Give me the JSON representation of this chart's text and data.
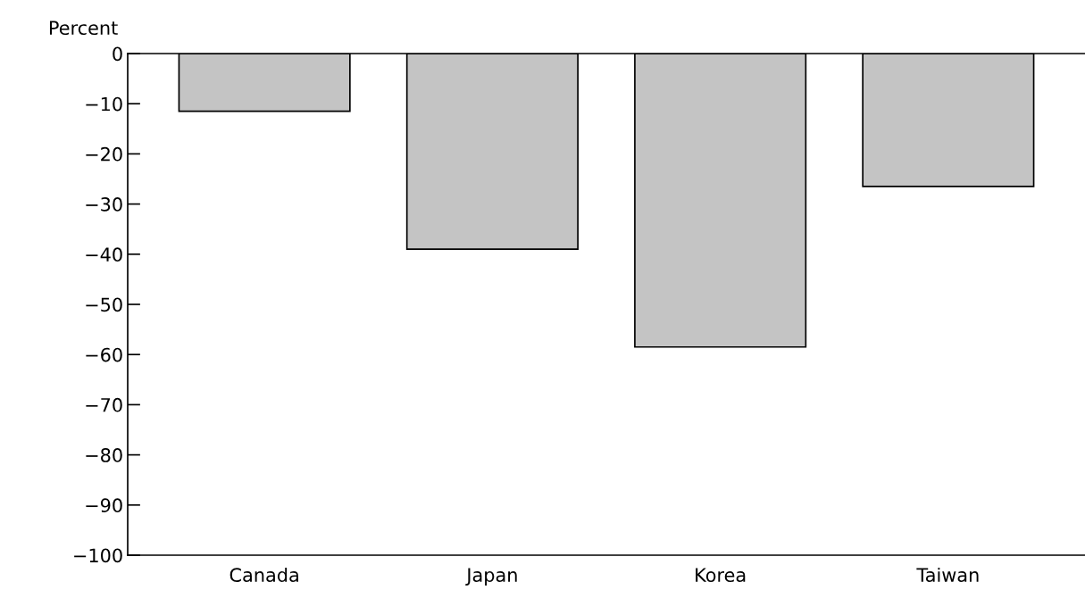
{
  "chart_data": {
    "type": "bar",
    "ylabel": "Percent",
    "categories": [
      "Canada",
      "Japan",
      "Korea",
      "Taiwan"
    ],
    "values": [
      -11.5,
      -39,
      -58.5,
      -26.5
    ],
    "color": "#c4c4c4",
    "ylim": [
      -100,
      0
    ],
    "yticks": [
      {
        "value": 0,
        "label": "0"
      },
      {
        "value": -10,
        "label": "−10"
      },
      {
        "value": -20,
        "label": "−20"
      },
      {
        "value": -30,
        "label": "−30"
      },
      {
        "value": -40,
        "label": "−40"
      },
      {
        "value": -50,
        "label": "−50"
      },
      {
        "value": -60,
        "label": "−60"
      },
      {
        "value": -70,
        "label": "−70"
      },
      {
        "value": -80,
        "label": "−80"
      },
      {
        "value": -90,
        "label": "−90"
      },
      {
        "value": -100,
        "label": "−100"
      }
    ],
    "grid": false
  }
}
